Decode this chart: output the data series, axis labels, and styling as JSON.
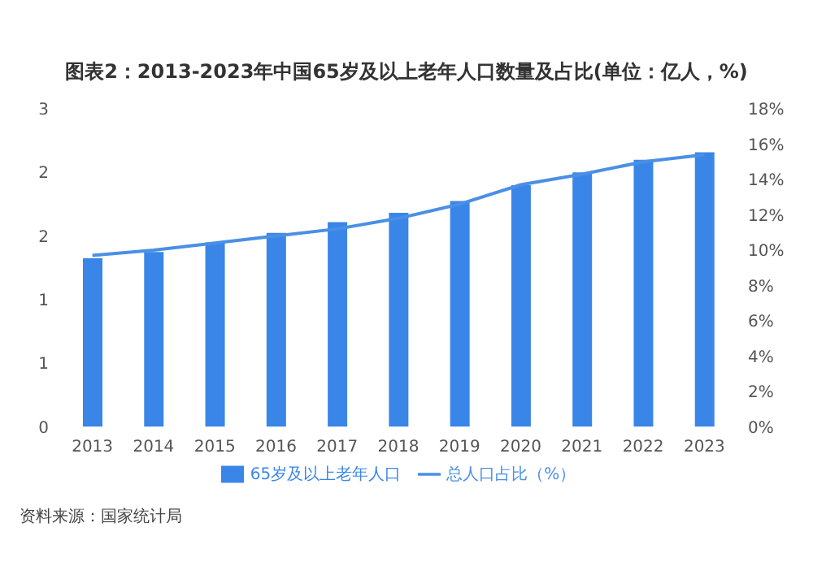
{
  "chart_data": {
    "type": "bar",
    "title": "图表2：2013-2023年中国65岁及以上老年人口数量及占比(单位：亿人，%)",
    "categories": [
      "2013",
      "2014",
      "2015",
      "2016",
      "2017",
      "2018",
      "2019",
      "2020",
      "2021",
      "2022",
      "2023"
    ],
    "series": [
      {
        "name": "65岁及以上老年人口",
        "color": "#3a86e8",
        "values": [
          1.59,
          1.65,
          1.74,
          1.83,
          1.93,
          2.02,
          2.13,
          2.28,
          2.4,
          2.52,
          2.59
        ]
      },
      {
        "name": "总人口占比（%）",
        "type": "line",
        "axis": "y2",
        "color": "#4a8fe6",
        "values": [
          9.7,
          10.0,
          10.4,
          10.8,
          11.2,
          11.8,
          12.6,
          13.7,
          14.3,
          15.0,
          15.4
        ]
      }
    ],
    "ylim": [
      0,
      3
    ],
    "yticks": [
      0,
      {
        "value": 0.6,
        "label": "1"
      },
      {
        "value": 1.2,
        "label": "1"
      },
      {
        "value": 1.8,
        "label": "2"
      },
      {
        "value": 2.4,
        "label": "2"
      },
      3
    ],
    "y2lim": [
      0,
      18
    ],
    "y2ticks": [
      {
        "value": 0,
        "label": "0%"
      },
      {
        "value": 2,
        "label": "2%"
      },
      {
        "value": 4,
        "label": "4%"
      },
      {
        "value": 6,
        "label": "6%"
      },
      {
        "value": 8,
        "label": "8%"
      },
      {
        "value": 10,
        "label": "10%"
      },
      {
        "value": 12,
        "label": "12%"
      },
      {
        "value": 14,
        "label": "14%"
      },
      {
        "value": 16,
        "label": "16%"
      },
      {
        "value": 18,
        "label": "18%"
      }
    ],
    "legend": "bottom",
    "marker": "none",
    "annotations": [
      "资料来源：国家统计局"
    ]
  }
}
